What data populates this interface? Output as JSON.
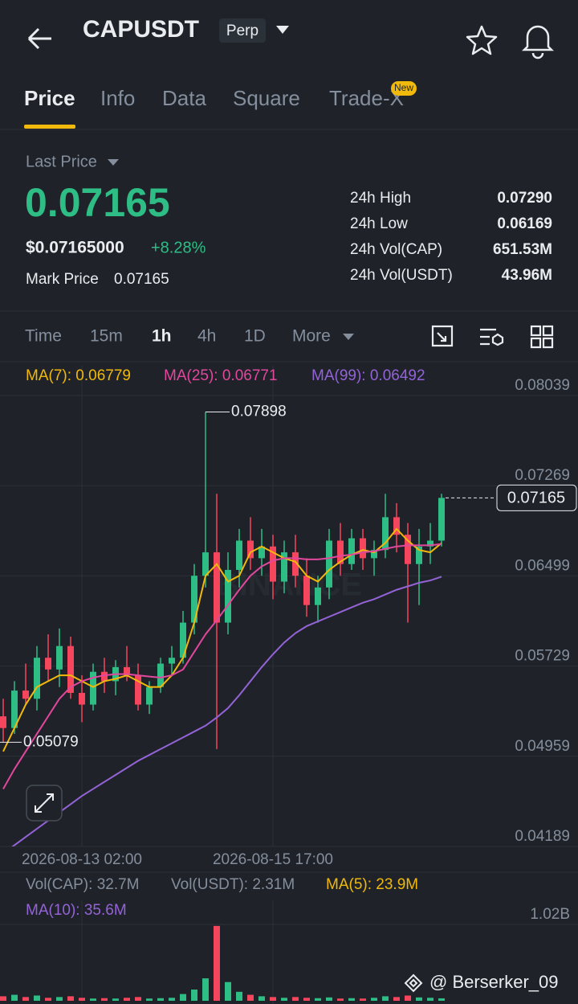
{
  "header": {
    "title": "CAPUSDT",
    "badge": "Perp"
  },
  "tabs": [
    "Price",
    "Info",
    "Data",
    "Square",
    "Trade-X"
  ],
  "new_badge": "New",
  "ticker": {
    "last_price_label": "Last Price",
    "price": "0.07165",
    "usd_price": "$0.07165000",
    "change": "+8.28%",
    "mark_price_label": "Mark Price",
    "mark_price": "0.07165",
    "stats": [
      {
        "label": "24h High",
        "value": "0.07290"
      },
      {
        "label": "24h Low",
        "value": "0.06169"
      },
      {
        "label": "24h Vol(CAP)",
        "value": "651.53M"
      },
      {
        "label": "24h Vol(USDT)",
        "value": "43.96M"
      }
    ]
  },
  "intervals": [
    "Time",
    "15m",
    "1h",
    "4h",
    "1D",
    "More"
  ],
  "watermark": "BINANCE",
  "footer": "@ Berserker_09",
  "chart_data": [
    {
      "type": "candlestick",
      "up_color": "#2ebd85",
      "down_color": "#f6465d",
      "categories": [
        null,
        null,
        null,
        null,
        null,
        null,
        null,
        "2026-08-13 02:00",
        null,
        null,
        null,
        null,
        null,
        null,
        null,
        null,
        null,
        null,
        null,
        null,
        null,
        null,
        null,
        null,
        "2026-08-15 17:00",
        null,
        null,
        null,
        null,
        null,
        null,
        null,
        null,
        null,
        null,
        null,
        null,
        null,
        null,
        null
      ],
      "ohlc": [
        [
          0.053,
          0.0545,
          0.05079,
          0.052
        ],
        [
          0.052,
          0.056,
          0.0515,
          0.0552
        ],
        [
          0.0552,
          0.0575,
          0.054,
          0.0545
        ],
        [
          0.0545,
          0.059,
          0.0535,
          0.058
        ],
        [
          0.058,
          0.06,
          0.056,
          0.057
        ],
        [
          0.057,
          0.0605,
          0.0555,
          0.059
        ],
        [
          0.059,
          0.0598,
          0.0545,
          0.055
        ],
        [
          0.055,
          0.0565,
          0.0525,
          0.054
        ],
        [
          0.054,
          0.0575,
          0.0535,
          0.0568
        ],
        [
          0.0568,
          0.058,
          0.055,
          0.056
        ],
        [
          0.056,
          0.0578,
          0.0548,
          0.0572
        ],
        [
          0.0572,
          0.059,
          0.056,
          0.0565
        ],
        [
          0.0565,
          0.0575,
          0.0535,
          0.054
        ],
        [
          0.054,
          0.056,
          0.0532,
          0.0555
        ],
        [
          0.0555,
          0.058,
          0.055,
          0.0575
        ],
        [
          0.0575,
          0.059,
          0.0565,
          0.058
        ],
        [
          0.058,
          0.062,
          0.0575,
          0.061
        ],
        [
          0.061,
          0.066,
          0.06,
          0.065
        ],
        [
          0.065,
          0.07898,
          0.064,
          0.067
        ],
        [
          0.067,
          0.072,
          0.0502,
          0.061
        ],
        [
          0.061,
          0.067,
          0.06,
          0.0655
        ],
        [
          0.0655,
          0.069,
          0.064,
          0.068
        ],
        [
          0.068,
          0.07,
          0.0655,
          0.0665
        ],
        [
          0.0665,
          0.069,
          0.065,
          0.0675
        ],
        [
          0.0675,
          0.0685,
          0.063,
          0.0645
        ],
        [
          0.0645,
          0.068,
          0.0635,
          0.067
        ],
        [
          0.067,
          0.0685,
          0.064,
          0.065
        ],
        [
          0.065,
          0.0665,
          0.0615,
          0.0625
        ],
        [
          0.0625,
          0.065,
          0.061,
          0.064
        ],
        [
          0.064,
          0.069,
          0.063,
          0.068
        ],
        [
          0.068,
          0.0695,
          0.065,
          0.066
        ],
        [
          0.066,
          0.069,
          0.0655,
          0.0682
        ],
        [
          0.0682,
          0.069,
          0.0655,
          0.0665
        ],
        [
          0.0665,
          0.068,
          0.065,
          0.0672
        ],
        [
          0.0672,
          0.072,
          0.0665,
          0.07
        ],
        [
          0.07,
          0.0712,
          0.067,
          0.0685
        ],
        [
          0.0685,
          0.0695,
          0.061,
          0.066
        ],
        [
          0.066,
          0.069,
          0.0625,
          0.0675
        ],
        [
          0.0675,
          0.0695,
          0.066,
          0.068
        ],
        [
          0.068,
          0.072,
          0.0675,
          0.07165
        ]
      ],
      "series": [
        {
          "name": "MA(7): 0.06779",
          "color": "#f0b90b",
          "values": [
            0.05,
            0.052,
            0.054,
            0.0555,
            0.056,
            0.0565,
            0.0565,
            0.056,
            0.0555,
            0.056,
            0.0562,
            0.0565,
            0.056,
            0.0555,
            0.0555,
            0.0565,
            0.058,
            0.061,
            0.065,
            0.066,
            0.0645,
            0.065,
            0.067,
            0.0675,
            0.067,
            0.0665,
            0.0662,
            0.065,
            0.0645,
            0.0655,
            0.0662,
            0.0668,
            0.0672,
            0.067,
            0.0678,
            0.069,
            0.068,
            0.0672,
            0.067,
            0.06779
          ]
        },
        {
          "name": "MA(25): 0.06771",
          "color": "#e2479e",
          "values": [
            0.0468,
            0.0485,
            0.05,
            0.0515,
            0.053,
            0.0545,
            0.0555,
            0.056,
            0.0563,
            0.0565,
            0.0566,
            0.0566,
            0.0565,
            0.0564,
            0.0563,
            0.0565,
            0.057,
            0.0585,
            0.06,
            0.0612,
            0.0625,
            0.0638,
            0.065,
            0.0658,
            0.0663,
            0.0665,
            0.0665,
            0.0664,
            0.0664,
            0.0665,
            0.0667,
            0.0668,
            0.067,
            0.0671,
            0.0673,
            0.0675,
            0.0676,
            0.0676,
            0.0676,
            0.06771
          ]
        },
        {
          "name": "MA(99): 0.06492",
          "color": "#9463d8",
          "values": [
            0.0413,
            0.042,
            0.0427,
            0.0434,
            0.0441,
            0.0448,
            0.0455,
            0.0462,
            0.0468,
            0.0474,
            0.048,
            0.0486,
            0.0492,
            0.0497,
            0.0502,
            0.0507,
            0.0512,
            0.0517,
            0.0522,
            0.0529,
            0.0537,
            0.0548,
            0.056,
            0.0572,
            0.0583,
            0.0593,
            0.0601,
            0.0607,
            0.0611,
            0.0615,
            0.0619,
            0.0623,
            0.0627,
            0.063,
            0.0634,
            0.0638,
            0.0641,
            0.0644,
            0.0646,
            0.06492
          ]
        }
      ],
      "ylim": [
        0.04189,
        0.08039
      ],
      "yticks": [
        0.08039,
        0.07269,
        0.06499,
        0.05729,
        0.04959,
        0.04189
      ],
      "grid": true
    },
    {
      "type": "bar",
      "legend": [
        {
          "text": "Vol(CAP): 32.7M",
          "color": "#848e9c"
        },
        {
          "text": "Vol(USDT): 2.31M",
          "color": "#848e9c"
        },
        {
          "text": "MA(5): 23.9M",
          "color": "#f0b90b"
        },
        {
          "text": "MA(10): 35.6M",
          "color": "#9463d8"
        }
      ],
      "values": [
        60000000,
        80000000,
        50000000,
        70000000,
        40000000,
        50000000,
        60000000,
        40000000,
        30000000,
        35000000,
        30000000,
        40000000,
        50000000,
        30000000,
        35000000,
        40000000,
        90000000,
        150000000,
        300000000,
        1000000000,
        250000000,
        120000000,
        80000000,
        60000000,
        50000000,
        40000000,
        50000000,
        40000000,
        35000000,
        45000000,
        30000000,
        35000000,
        30000000,
        40000000,
        60000000,
        50000000,
        70000000,
        45000000,
        40000000,
        32700000
      ],
      "ylim": [
        0,
        1020000000
      ],
      "yticks": [
        {
          "value": 1020000000,
          "label": "1.02B"
        }
      ]
    }
  ]
}
